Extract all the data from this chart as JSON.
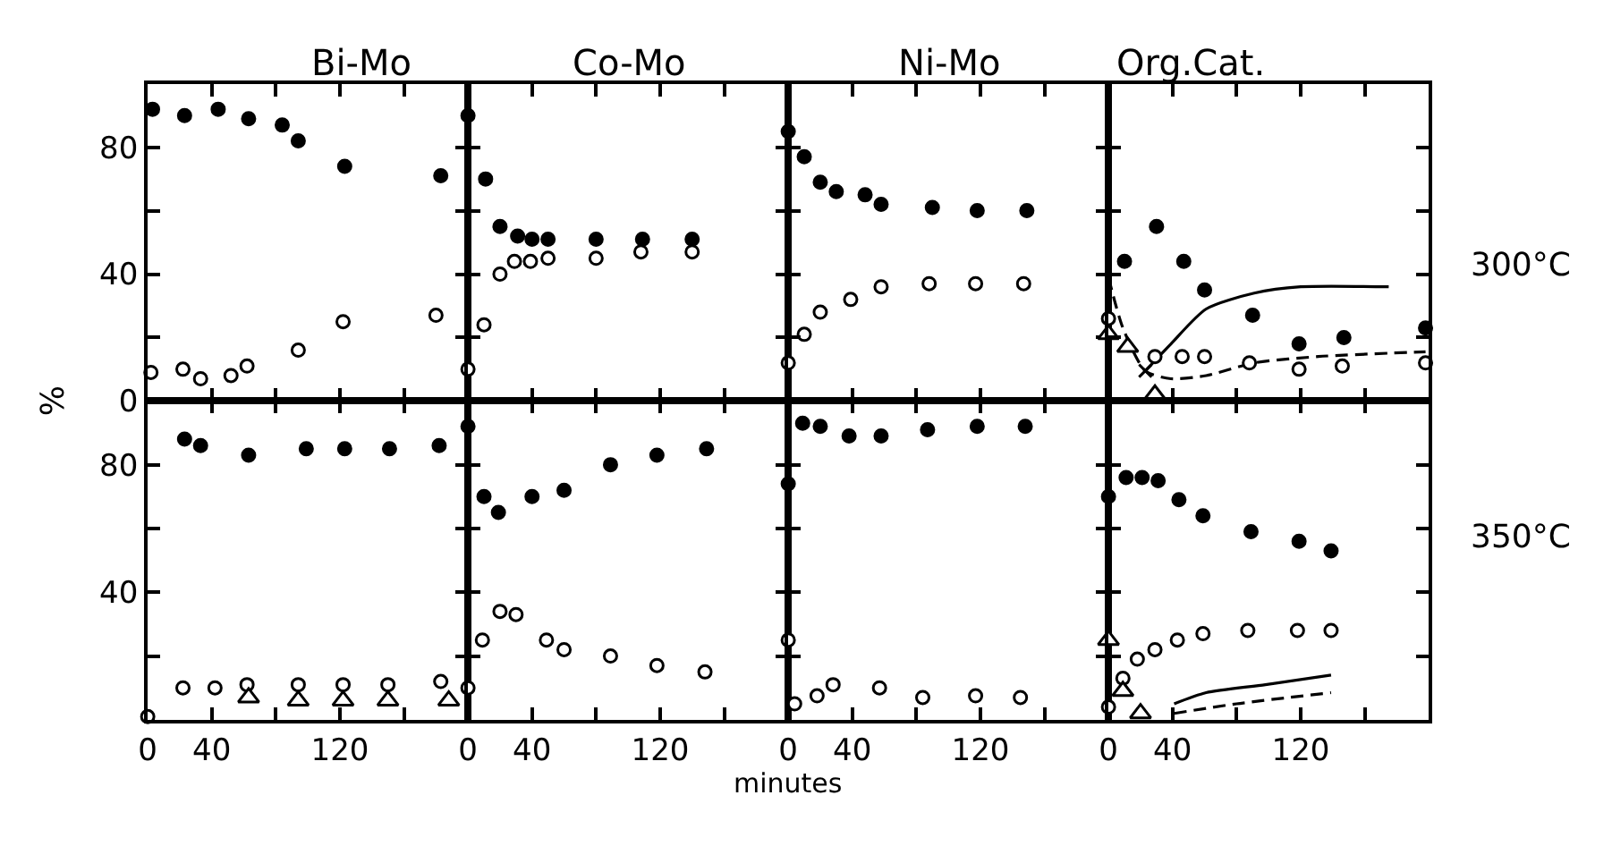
{
  "chart_data": [
    {
      "type": "scatter",
      "title": "Bi-Mo",
      "ylabel": "%",
      "xlim": [
        0,
        200
      ],
      "ylim": [
        0,
        100
      ],
      "xticks": [
        {
          "value": 0,
          "label": null
        },
        {
          "value": 40,
          "label": null
        },
        {
          "value": 80,
          "label": null
        },
        {
          "value": 120,
          "label": null
        },
        {
          "value": 160,
          "label": null
        }
      ],
      "yticks": [
        0,
        {
          "value": 20,
          "label": null
        },
        40,
        {
          "value": 60,
          "label": null
        },
        80
      ],
      "tick_labels": "y",
      "series": [
        {
          "color": "#000000",
          "marker": "circle",
          "x": [
            3,
            23,
            44,
            63,
            84,
            94,
            123,
            183
          ],
          "values": [
            92,
            90,
            92,
            89,
            87,
            82,
            74,
            71
          ]
        },
        {
          "color": "#ffffff",
          "marker": "circle",
          "x": [
            2,
            22,
            33,
            52,
            62,
            94,
            122,
            180
          ],
          "values": [
            9,
            10,
            7,
            8,
            11,
            16,
            25,
            27
          ]
        }
      ]
    },
    {
      "type": "scatter",
      "title": "Co-Mo",
      "xlim": [
        0,
        200
      ],
      "ylim": [
        0,
        100
      ],
      "xticks": [
        {
          "value": 0,
          "label": null
        },
        {
          "value": 40,
          "label": null
        },
        {
          "value": 80,
          "label": null
        },
        {
          "value": 120,
          "label": null
        },
        {
          "value": 160,
          "label": null
        }
      ],
      "yticks": [
        0,
        20,
        40,
        60,
        80
      ],
      "tick_labels": false,
      "series": [
        {
          "color": "#000000",
          "marker": "circle",
          "x": [
            0,
            11,
            20,
            31,
            40,
            50,
            80,
            109,
            140
          ],
          "values": [
            90,
            70,
            55,
            52,
            51,
            51,
            51,
            51,
            51
          ]
        },
        {
          "color": "#ffffff",
          "marker": "circle",
          "x": [
            0,
            10,
            20,
            29,
            39,
            50,
            80,
            108,
            140
          ],
          "values": [
            10,
            24,
            40,
            44,
            44,
            45,
            45,
            47,
            47
          ]
        }
      ]
    },
    {
      "type": "scatter",
      "title": "Ni-Mo",
      "xlim": [
        0,
        200
      ],
      "ylim": [
        0,
        100
      ],
      "xticks": [
        {
          "value": 0,
          "label": null
        },
        {
          "value": 40,
          "label": null
        },
        {
          "value": 80,
          "label": null
        },
        {
          "value": 120,
          "label": null
        },
        {
          "value": 160,
          "label": null
        }
      ],
      "yticks": [
        0,
        20,
        40,
        60,
        80
      ],
      "tick_labels": false,
      "series": [
        {
          "color": "#000000",
          "marker": "circle",
          "x": [
            0,
            10,
            20,
            30,
            48,
            58,
            90,
            118,
            149
          ],
          "values": [
            85,
            77,
            69,
            66,
            65,
            62,
            61,
            60,
            60
          ]
        },
        {
          "color": "#ffffff",
          "marker": "circle",
          "x": [
            0,
            10,
            20,
            39,
            58,
            88,
            117,
            147
          ],
          "values": [
            12,
            21,
            28,
            32,
            36,
            37,
            37,
            37
          ]
        }
      ]
    },
    {
      "type": "scatter",
      "title": "Org.Cat.",
      "annotations": [
        "300°C"
      ],
      "xlim": [
        0,
        200
      ],
      "ylim": [
        0,
        100
      ],
      "xticks": [
        {
          "value": 0,
          "label": null
        },
        {
          "value": 40,
          "label": null
        },
        {
          "value": 80,
          "label": null
        },
        {
          "value": 120,
          "label": null
        },
        {
          "value": 160,
          "label": null
        }
      ],
      "yticks": [
        0,
        20,
        40,
        60,
        80
      ],
      "tick_labels": false,
      "series": [
        {
          "type": "line",
          "color": "#000000",
          "marker": "none",
          "line_style": "solid",
          "x": [
            23,
            39,
            61,
            91,
            120,
            175
          ],
          "values": [
            9.5,
            18,
            29,
            34,
            36,
            36
          ]
        },
        {
          "type": "line",
          "color": "#000000",
          "marker": "none",
          "line_style": "dashed",
          "x": [
            0,
            9,
            23,
            39,
            61,
            91,
            131,
            198
          ],
          "values": [
            39,
            23,
            9.5,
            7,
            8,
            12,
            14,
            15.5
          ]
        },
        {
          "color": "#000000",
          "marker": "circle",
          "x": [
            10,
            30,
            47,
            60,
            90,
            119,
            147,
            198
          ],
          "values": [
            44,
            55,
            44,
            35,
            27,
            18,
            20,
            23
          ]
        },
        {
          "color": "#ffffff",
          "marker": "circle",
          "x": [
            0,
            29,
            46,
            60,
            88,
            119,
            146,
            198
          ],
          "values": [
            26,
            14,
            14,
            14,
            12,
            10,
            11,
            12
          ]
        },
        {
          "color": "#ffffff",
          "marker": "triangle",
          "x": [
            0,
            12,
            29
          ],
          "values": [
            21,
            17,
            2
          ]
        },
        {
          "color": "#000000",
          "marker": "cross",
          "x": [
            23
          ],
          "values": [
            9.5
          ]
        }
      ]
    },
    {
      "type": "scatter",
      "xlim": [
        0,
        200
      ],
      "ylim": [
        0,
        100
      ],
      "xticks": [
        0,
        40,
        {
          "value": 80,
          "label": null
        },
        120,
        {
          "value": 160,
          "label": null
        }
      ],
      "yticks": [
        {
          "value": 0,
          "label": null
        },
        {
          "value": 20,
          "label": null
        },
        40,
        {
          "value": 60,
          "label": null
        },
        80
      ],
      "series": [
        {
          "color": "#000000",
          "marker": "circle",
          "x": [
            23,
            33,
            63,
            99,
            123,
            151,
            182
          ],
          "values": [
            88,
            86,
            83,
            85,
            85,
            85,
            86
          ]
        },
        {
          "color": "#ffffff",
          "marker": "circle",
          "x": [
            0,
            22,
            42,
            62,
            94,
            122,
            150,
            183
          ],
          "values": [
            1,
            10,
            10,
            11,
            11,
            11,
            11,
            12
          ]
        },
        {
          "color": "#ffffff",
          "marker": "triangle",
          "x": [
            63,
            94,
            122,
            150,
            188
          ],
          "values": [
            7,
            6,
            6,
            6,
            6
          ]
        }
      ]
    },
    {
      "type": "scatter",
      "xlabel": "minutes",
      "xlim": [
        0,
        200
      ],
      "ylim": [
        0,
        100
      ],
      "xticks": [
        0,
        40,
        {
          "value": 80,
          "label": null
        },
        120,
        {
          "value": 160,
          "label": null
        }
      ],
      "yticks": [
        0,
        20,
        40,
        60,
        80
      ],
      "tick_labels": "x",
      "series": [
        {
          "color": "#000000",
          "marker": "circle",
          "x": [
            0,
            10,
            19,
            40,
            60,
            89,
            118,
            149
          ],
          "values": [
            92,
            70,
            65,
            70,
            72,
            80,
            83,
            85
          ]
        },
        {
          "color": "#ffffff",
          "marker": "circle",
          "x": [
            0,
            9,
            20,
            30,
            49,
            60,
            89,
            118,
            148
          ],
          "values": [
            10,
            25,
            34,
            33,
            25,
            22,
            20,
            17,
            15
          ]
        }
      ]
    },
    {
      "type": "scatter",
      "xlim": [
        0,
        200
      ],
      "ylim": [
        0,
        100
      ],
      "xticks": [
        0,
        40,
        {
          "value": 80,
          "label": null
        },
        120,
        {
          "value": 160,
          "label": null
        }
      ],
      "yticks": [
        0,
        20,
        40,
        60,
        80
      ],
      "tick_labels": "x",
      "series": [
        {
          "color": "#000000",
          "marker": "circle",
          "x": [
            0,
            9,
            20,
            38,
            58,
            87,
            118,
            148
          ],
          "values": [
            74,
            93,
            92,
            89,
            89,
            91,
            92,
            92
          ]
        },
        {
          "color": "#ffffff",
          "marker": "circle",
          "x": [
            0,
            4,
            18,
            28,
            57,
            84,
            117,
            145
          ],
          "values": [
            25,
            5,
            7.5,
            11,
            10,
            7,
            7.5,
            7
          ]
        }
      ]
    },
    {
      "type": "scatter",
      "annotations": [
        "350°C"
      ],
      "xlim": [
        0,
        200
      ],
      "ylim": [
        0,
        100
      ],
      "xticks": [
        0,
        40,
        {
          "value": 80,
          "label": null
        },
        120,
        {
          "value": 160,
          "label": null
        }
      ],
      "yticks": [
        0,
        20,
        40,
        60,
        80
      ],
      "tick_labels": "x",
      "series": [
        {
          "type": "line",
          "color": "#000000",
          "marker": "none",
          "line_style": "solid",
          "x": [
            41,
            61,
            98,
            139
          ],
          "values": [
            5,
            8.5,
            11,
            14
          ]
        },
        {
          "type": "line",
          "color": "#000000",
          "marker": "none",
          "line_style": "dashed",
          "x": [
            41,
            80,
            139
          ],
          "values": [
            2,
            5,
            8.5
          ]
        },
        {
          "color": "#000000",
          "marker": "circle",
          "x": [
            0,
            11,
            21,
            31,
            44,
            59,
            89,
            119,
            139
          ],
          "values": [
            70,
            76,
            76,
            75,
            69,
            64,
            59,
            56,
            53
          ]
        },
        {
          "color": "#ffffff",
          "marker": "circle",
          "x": [
            0,
            9,
            18,
            29,
            43,
            59,
            87,
            118,
            139
          ],
          "values": [
            4,
            13,
            19,
            22,
            25,
            27,
            28,
            28,
            28
          ]
        },
        {
          "color": "#ffffff",
          "marker": "triangle",
          "x": [
            0,
            9,
            20
          ],
          "values": [
            25,
            9,
            2
          ]
        }
      ]
    }
  ]
}
